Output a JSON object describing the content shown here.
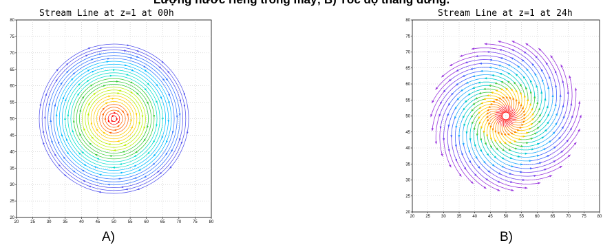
{
  "header": {
    "caption": "Lượng nước riêng trong mây; B) Tốc độ thẳng đứng."
  },
  "panels": [
    {
      "label": "A)"
    },
    {
      "label": "B)"
    }
  ],
  "chart_data": [
    {
      "type": "streamline",
      "title": "Stream Line at z=1 at 00h",
      "xlim": [
        20,
        80
      ],
      "ylim": [
        20,
        80
      ],
      "x_ticks": [
        20,
        25,
        30,
        35,
        40,
        45,
        50,
        55,
        60,
        65,
        70,
        75,
        80
      ],
      "y_ticks": [
        20,
        25,
        30,
        35,
        40,
        45,
        50,
        55,
        60,
        65,
        70,
        75,
        80
      ],
      "grid": true,
      "center": [
        50,
        50
      ],
      "radius": 23,
      "pattern": "concentric circles",
      "colors": [
        "#ff0000",
        "#ff6600",
        "#ffcc00",
        "#bbee00",
        "#33cc33",
        "#00ddcc",
        "#00bbff",
        "#3377ff",
        "#5555ee"
      ]
    },
    {
      "type": "streamline",
      "title": "Stream Line at z=1 at 24h",
      "xlim": [
        20,
        80
      ],
      "ylim": [
        20,
        80
      ],
      "x_ticks": [
        20,
        25,
        30,
        35,
        40,
        45,
        50,
        55,
        60,
        65,
        70,
        75,
        80
      ],
      "y_ticks": [
        20,
        25,
        30,
        35,
        40,
        45,
        50,
        55,
        60,
        65,
        70,
        75,
        80
      ],
      "grid": true,
      "center": [
        50,
        50
      ],
      "radius": 24,
      "pattern": "spiral",
      "colors": [
        "#ff2222",
        "#ff8800",
        "#ffcc00",
        "#44cc44",
        "#00cccc",
        "#22aaff",
        "#4466ff",
        "#7744ee",
        "#9933dd"
      ]
    }
  ]
}
